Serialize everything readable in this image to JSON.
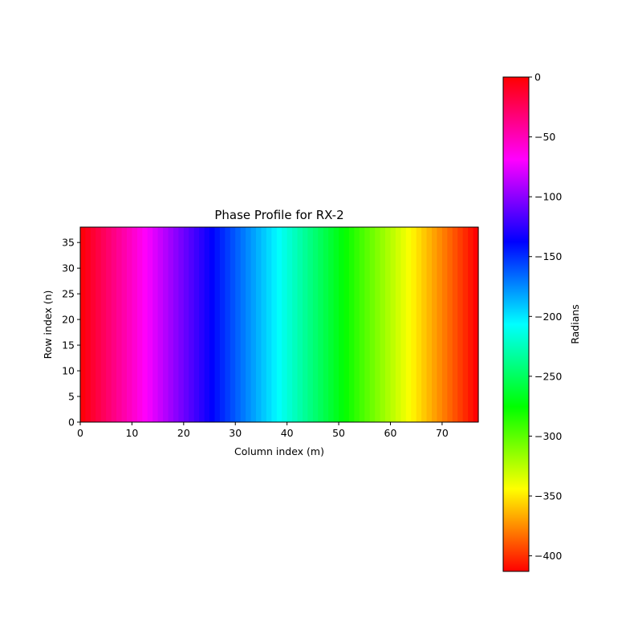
{
  "chart_data": {
    "type": "heatmap",
    "title": "Phase Profile for RX-2",
    "xlabel": "Column index (m)",
    "ylabel": "Row index (n)",
    "xlim": [
      0,
      77
    ],
    "ylim": [
      0,
      38
    ],
    "n_columns": 77,
    "n_rows": 38,
    "x_ticks": [
      0,
      10,
      20,
      30,
      40,
      50,
      60,
      70
    ],
    "y_ticks": [
      0,
      5,
      10,
      15,
      20,
      25,
      30,
      35
    ],
    "values_description_by_column": "phase varies only along columns; value per column in radians",
    "column_values": [
      -2.7,
      -8.1,
      -13.5,
      -18.9,
      -24.3,
      -29.7,
      -35.1,
      -40.5,
      -45.9,
      -51.3,
      -56.6,
      -62,
      -67.4,
      -72.8,
      -78.2,
      -83.6,
      -89,
      -94.4,
      -99.8,
      -105.2,
      -110.6,
      -116,
      -121.4,
      -126.8,
      -132.2,
      -137.6,
      -143,
      -148.4,
      -153.8,
      -159.2,
      -164.6,
      -170,
      -175.4,
      -180.8,
      -186.2,
      -191.6,
      -196.9,
      -202.3,
      -207.7,
      -213.1,
      -218.5,
      -223.9,
      -229.3,
      -234.7,
      -240.1,
      -245.5,
      -250.9,
      -256.3,
      -261.7,
      -267.1,
      -272.5,
      -277.9,
      -283.3,
      -288.7,
      -294.1,
      -299.5,
      -304.9,
      -310.3,
      -315.7,
      -321.1,
      -326.5,
      -331.9,
      -337.3,
      -342.7,
      -348,
      -353.4,
      -358.8,
      -364.2,
      -369.6,
      -375,
      -380.4,
      -385.8,
      -391.2,
      -396.6,
      -402,
      -407.4,
      -412.8
    ],
    "colorbar": {
      "label": "Radians",
      "colormap": "hsv",
      "vmin": -413,
      "vmax": 0,
      "ticks": [
        0,
        -50,
        -100,
        -150,
        -200,
        -250,
        -300,
        -350,
        -400
      ]
    }
  }
}
